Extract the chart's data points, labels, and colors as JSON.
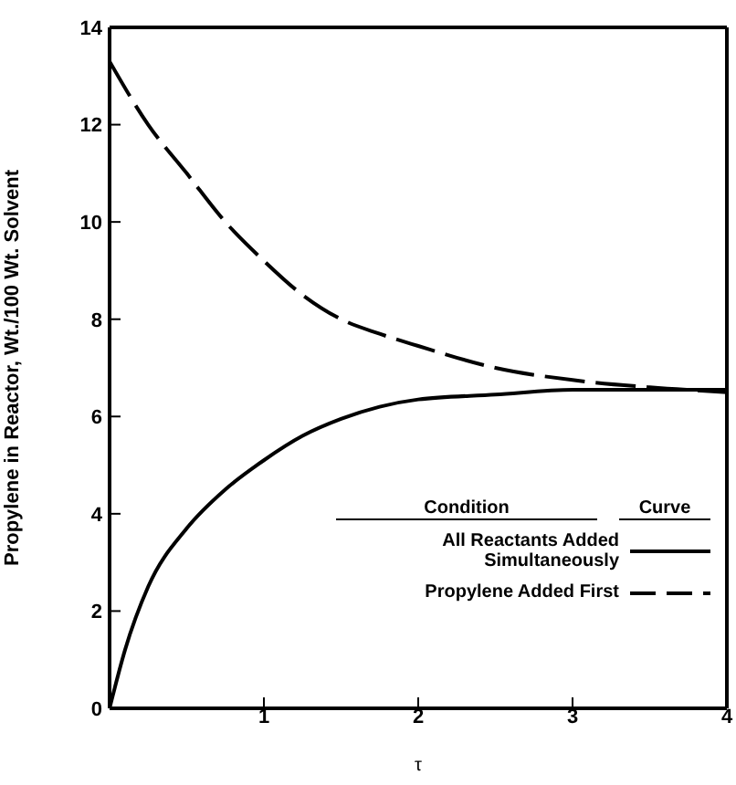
{
  "chart_data": {
    "type": "line",
    "xlabel": "τ",
    "ylabel": "Propylene in Reactor, Wt./100 Wt. Solvent",
    "legend_title": "Condition",
    "annotations": [
      "Curve"
    ],
    "series": [
      {
        "name": "All Reactants Added Simultaneously",
        "color": "#000000",
        "line_style": "solid",
        "x": [
          0,
          0.1,
          0.25,
          0.5,
          0.75,
          1,
          1.25,
          1.5,
          1.75,
          2,
          2.5,
          3,
          3.5,
          4
        ],
        "values": [
          0,
          1.2,
          2.5,
          3.7,
          4.5,
          5.1,
          5.6,
          5.95,
          6.2,
          6.35,
          6.45,
          6.55,
          6.55,
          6.55
        ]
      },
      {
        "name": "Propylene Added First",
        "color": "#000000",
        "line_style": "dashed",
        "x": [
          0,
          0.25,
          0.5,
          0.75,
          1,
          1.25,
          1.5,
          1.75,
          2,
          2.5,
          3,
          3.5,
          4
        ],
        "values": [
          13.3,
          12,
          11,
          10,
          9.2,
          8.5,
          8,
          7.7,
          7.45,
          7,
          6.75,
          6.6,
          6.5
        ]
      }
    ],
    "xlim": [
      0,
      4
    ],
    "xticks": [
      1,
      2,
      3,
      4
    ],
    "ylim": [
      0,
      14
    ],
    "yticks": [
      0,
      2,
      4,
      6,
      8,
      10,
      12,
      14
    ],
    "legend": "bottom right",
    "marker": "none"
  }
}
